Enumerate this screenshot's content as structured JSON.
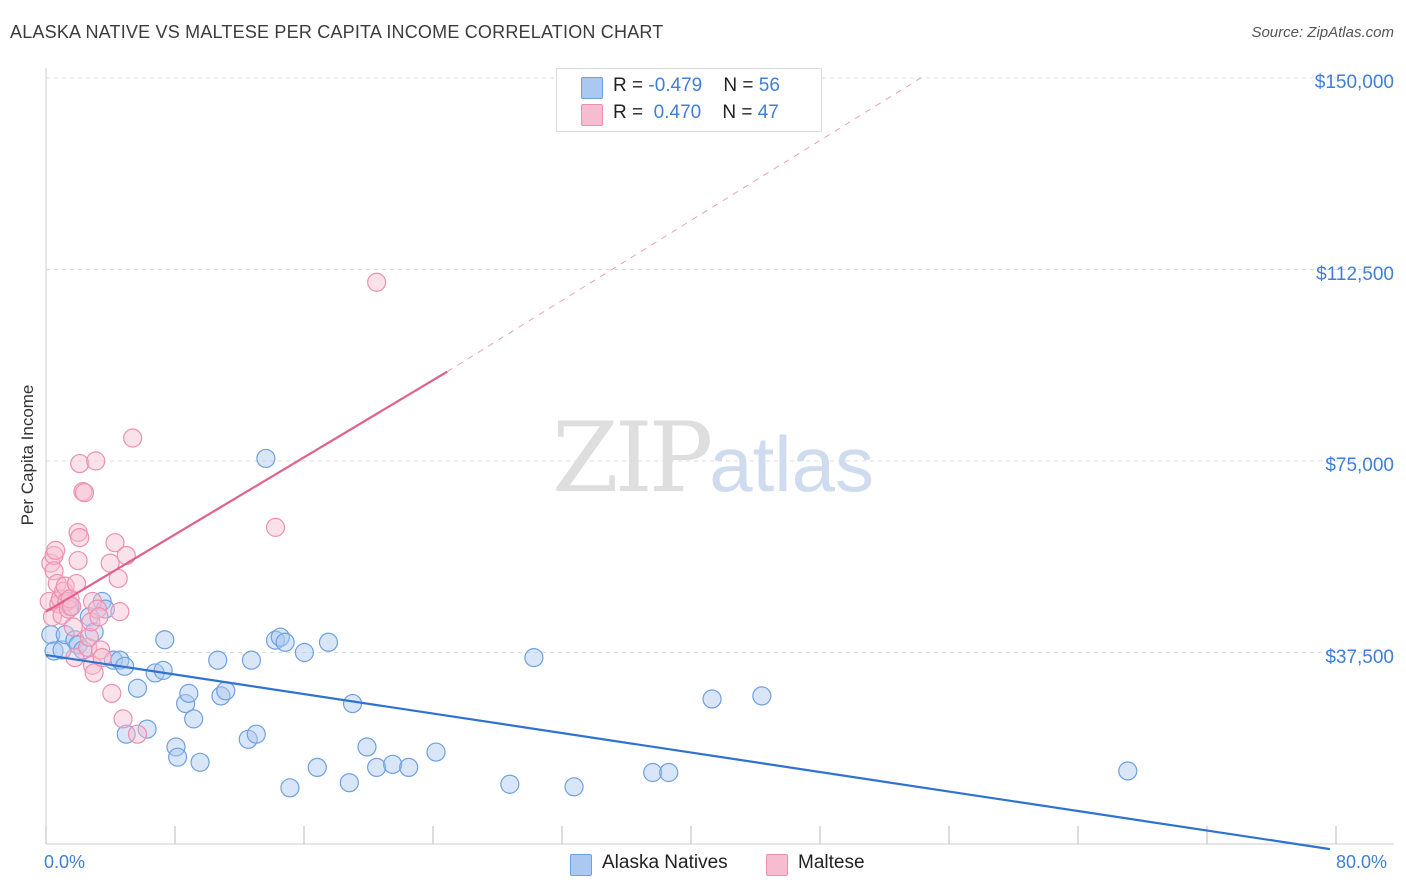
{
  "title": "ALASKA NATIVE VS MALTESE PER CAPITA INCOME CORRELATION CHART",
  "source": "Source: ZipAtlas.com",
  "watermark": {
    "zip": "ZIP",
    "atlas": "atlas"
  },
  "colors": {
    "blue": "#6fa0e0",
    "blue_fill": "#aac8f0",
    "blue_line": "#2f72d0",
    "pink": "#ef8fb0",
    "pink_fill": "#f7bcd0",
    "pink_line": "#e0608e",
    "axis_text": "#3f7fd6",
    "grid": "#dddddd"
  },
  "legend": {
    "rows": [
      {
        "r_label": "R = ",
        "r_value": "-0.479",
        "n_label": "N = ",
        "n_value": "56"
      },
      {
        "r_label": "R = ",
        "r_value": " 0.470",
        "n_label": "N = ",
        "n_value": "47"
      }
    ]
  },
  "chart_data": {
    "type": "scatter",
    "title": "ALASKA NATIVE VS MALTESE PER CAPITA INCOME CORRELATION CHART",
    "xlabel": "",
    "ylabel": "Per Capita Income",
    "xlim": [
      0,
      80
    ],
    "ylim": [
      0,
      155000
    ],
    "x_tick_labels": [
      "0.0%",
      "80.0%"
    ],
    "y_ticks": [
      37500,
      75000,
      112500,
      150000
    ],
    "y_tick_labels": [
      "$37,500",
      "$75,000",
      "$112,500",
      "$150,000"
    ],
    "grid": true,
    "legend_position": "top-center",
    "series": [
      {
        "name": "Alaska Natives",
        "color": "#6fa0e0",
        "trend": {
          "x": [
            0,
            80
          ],
          "y": [
            37000,
            -1000
          ],
          "style": "solid"
        },
        "points": [
          [
            0.3,
            41000
          ],
          [
            0.5,
            37800
          ],
          [
            1.0,
            38000
          ],
          [
            1.2,
            41000
          ],
          [
            1.5,
            46500
          ],
          [
            1.8,
            40000
          ],
          [
            2.0,
            39000
          ],
          [
            2.3,
            38000
          ],
          [
            2.7,
            44500
          ],
          [
            3.0,
            41500
          ],
          [
            3.5,
            47500
          ],
          [
            3.7,
            46000
          ],
          [
            4.2,
            36000
          ],
          [
            4.6,
            36000
          ],
          [
            4.9,
            34800
          ],
          [
            5.0,
            21500
          ],
          [
            5.7,
            30500
          ],
          [
            6.3,
            22500
          ],
          [
            6.8,
            33500
          ],
          [
            7.3,
            34000
          ],
          [
            7.4,
            40000
          ],
          [
            8.1,
            19000
          ],
          [
            8.2,
            17000
          ],
          [
            8.7,
            27500
          ],
          [
            8.9,
            29500
          ],
          [
            9.2,
            24500
          ],
          [
            9.6,
            16000
          ],
          [
            10.7,
            36000
          ],
          [
            10.9,
            29000
          ],
          [
            11.2,
            30000
          ],
          [
            12.6,
            20500
          ],
          [
            12.8,
            36000
          ],
          [
            13.1,
            21500
          ],
          [
            13.7,
            75500
          ],
          [
            14.3,
            39900
          ],
          [
            14.6,
            40500
          ],
          [
            14.9,
            39500
          ],
          [
            15.2,
            11000
          ],
          [
            16.1,
            37500
          ],
          [
            16.9,
            15000
          ],
          [
            17.6,
            39500
          ],
          [
            18.9,
            12000
          ],
          [
            19.1,
            27500
          ],
          [
            20.0,
            19000
          ],
          [
            20.6,
            15000
          ],
          [
            21.6,
            15600
          ],
          [
            22.6,
            15000
          ],
          [
            24.3,
            18000
          ],
          [
            28.9,
            11700
          ],
          [
            30.4,
            36500
          ],
          [
            32.9,
            11200
          ],
          [
            37.8,
            14000
          ],
          [
            38.8,
            14000
          ],
          [
            41.5,
            28400
          ],
          [
            44.6,
            29000
          ],
          [
            67.4,
            14300
          ]
        ]
      },
      {
        "name": "Maltese",
        "color": "#ef8fb0",
        "trend": {
          "x": [
            0,
            25
          ],
          "y": [
            45500,
            92500
          ],
          "extended_to": [
            54.5,
            150000
          ],
          "style": "solid-then-dashed"
        },
        "points": [
          [
            0.2,
            47500
          ],
          [
            0.3,
            55000
          ],
          [
            0.4,
            44500
          ],
          [
            0.5,
            56500
          ],
          [
            0.5,
            53500
          ],
          [
            0.6,
            57500
          ],
          [
            0.7,
            51000
          ],
          [
            0.8,
            47000
          ],
          [
            0.9,
            48000
          ],
          [
            1.0,
            44800
          ],
          [
            1.1,
            49500
          ],
          [
            1.2,
            50500
          ],
          [
            1.3,
            47500
          ],
          [
            1.4,
            46000
          ],
          [
            1.5,
            48000
          ],
          [
            1.6,
            46500
          ],
          [
            1.7,
            42500
          ],
          [
            1.8,
            36500
          ],
          [
            1.9,
            51000
          ],
          [
            2.0,
            55500
          ],
          [
            2.0,
            61000
          ],
          [
            2.1,
            74500
          ],
          [
            2.1,
            60000
          ],
          [
            2.3,
            69000
          ],
          [
            2.4,
            68800
          ],
          [
            2.6,
            38500
          ],
          [
            2.7,
            40500
          ],
          [
            2.8,
            43500
          ],
          [
            2.9,
            47500
          ],
          [
            2.9,
            35000
          ],
          [
            3.0,
            33500
          ],
          [
            3.1,
            75000
          ],
          [
            3.2,
            46000
          ],
          [
            3.3,
            44500
          ],
          [
            3.4,
            38000
          ],
          [
            3.5,
            36500
          ],
          [
            4.0,
            55000
          ],
          [
            4.1,
            29500
          ],
          [
            4.3,
            59000
          ],
          [
            4.5,
            52000
          ],
          [
            4.6,
            45500
          ],
          [
            4.8,
            24500
          ],
          [
            5.0,
            56500
          ],
          [
            5.4,
            79500
          ],
          [
            5.7,
            21500
          ],
          [
            14.3,
            62000
          ],
          [
            20.6,
            110000
          ]
        ]
      }
    ]
  },
  "bottom_legend": [
    {
      "label": "Alaska Natives"
    },
    {
      "label": "Maltese"
    }
  ]
}
